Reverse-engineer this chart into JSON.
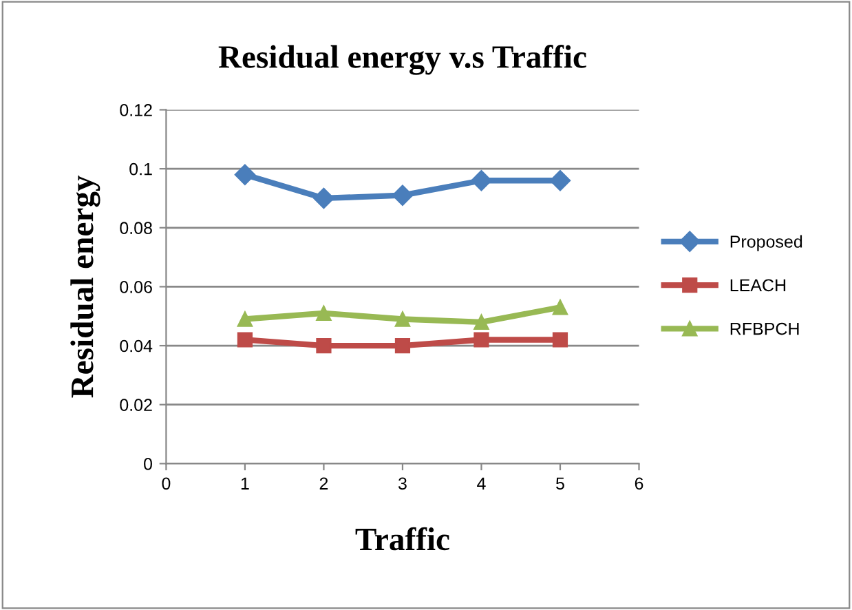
{
  "chart_data": {
    "type": "line",
    "title": "Residual energy v.s Traffic",
    "xlabel": "Traffic",
    "ylabel": "Residual energy",
    "x": [
      1,
      2,
      3,
      4,
      5
    ],
    "series": [
      {
        "name": "Proposed",
        "color": "#4a7ebb",
        "values": [
          0.098,
          0.09,
          0.091,
          0.096,
          0.096
        ],
        "marker": "diamond"
      },
      {
        "name": "LEACH",
        "color": "#be4b48",
        "values": [
          0.042,
          0.04,
          0.04,
          0.042,
          0.042
        ],
        "marker": "square"
      },
      {
        "name": "RFBPCH",
        "color": "#98b954",
        "values": [
          0.049,
          0.051,
          0.049,
          0.048,
          0.053
        ],
        "marker": "triangle"
      }
    ],
    "xlim": [
      0,
      6
    ],
    "xticks": [
      0,
      1,
      2,
      3,
      4,
      5,
      6
    ],
    "ylim": [
      0,
      0.12
    ],
    "yticks": [
      0,
      0.02,
      0.04,
      0.06,
      0.08,
      0.1,
      0.12
    ],
    "grid": "y",
    "legend": "right",
    "line_style": "solid"
  }
}
